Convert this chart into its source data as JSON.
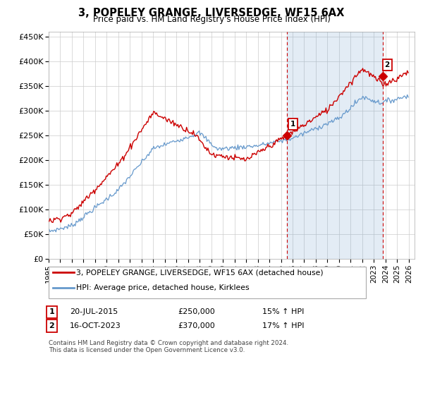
{
  "title": "3, POPELEY GRANGE, LIVERSEDGE, WF15 6AX",
  "subtitle": "Price paid vs. HM Land Registry's House Price Index (HPI)",
  "ylabel_ticks": [
    "£0",
    "£50K",
    "£100K",
    "£150K",
    "£200K",
    "£250K",
    "£300K",
    "£350K",
    "£400K",
    "£450K"
  ],
  "ylim": [
    0,
    460000
  ],
  "xlim_start": 1995.0,
  "xlim_end": 2026.5,
  "sale1_x": 2015.54,
  "sale1_y": 250000,
  "sale1_label": "1",
  "sale1_date": "20-JUL-2015",
  "sale1_price": "£250,000",
  "sale1_hpi": "15% ↑ HPI",
  "sale2_x": 2023.79,
  "sale2_y": 370000,
  "sale2_label": "2",
  "sale2_date": "16-OCT-2023",
  "sale2_price": "£370,000",
  "sale2_hpi": "17% ↑ HPI",
  "legend_line1": "3, POPELEY GRANGE, LIVERSEDGE, WF15 6AX (detached house)",
  "legend_line2": "HPI: Average price, detached house, Kirklees",
  "footer": "Contains HM Land Registry data © Crown copyright and database right 2024.\nThis data is licensed under the Open Government Licence v3.0.",
  "red_color": "#cc0000",
  "blue_color": "#6699cc",
  "blue_fill": "#ddeeff",
  "vline_color": "#cc0000",
  "grid_color": "#cccccc",
  "background_color": "#ffffff"
}
